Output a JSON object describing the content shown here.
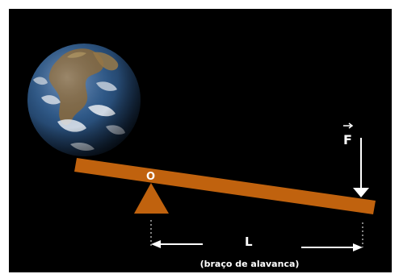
{
  "diagram": {
    "pivot_label": "O",
    "force_label": "F",
    "length_label": "L",
    "lever_arm_caption": "(braço de alavanca)",
    "colors": {
      "background": "#000000",
      "frame": "#ffffff",
      "lever": "#c0620e",
      "fulcrum": "#c0620e",
      "text": "#ffffff",
      "arrows": "#ffffff"
    }
  }
}
